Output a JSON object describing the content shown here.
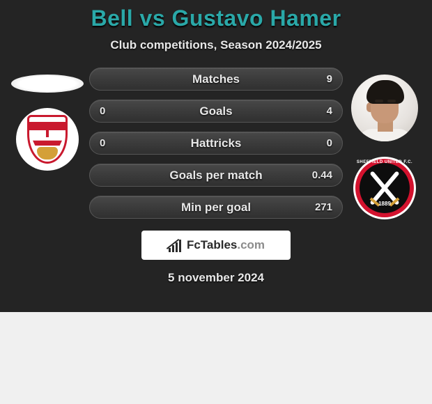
{
  "title": "Bell vs Gustavo Hamer",
  "subtitle": "Club competitions, Season 2024/2025",
  "date": "5 november 2024",
  "brand_name": "FcTables",
  "brand_ext": ".com",
  "colors": {
    "background": "#242424",
    "title_color": "#2aa8a8",
    "row_bg_top": "#484848",
    "row_bg_bot": "#303030",
    "text": "#e8e8e8",
    "bristol_red": "#c9192e",
    "sheffield_red": "#d3122e",
    "sheffield_black": "#0d0d0d"
  },
  "player_left": {
    "name": "Bell",
    "club": "Bristol City"
  },
  "player_right": {
    "name": "Gustavo Hamer",
    "club": "Sheffield United",
    "club_year": "1889"
  },
  "rows": [
    {
      "label": "Matches",
      "left": "",
      "right": "9"
    },
    {
      "label": "Goals",
      "left": "0",
      "right": "4"
    },
    {
      "label": "Hattricks",
      "left": "0",
      "right": "0"
    },
    {
      "label": "Goals per match",
      "left": "",
      "right": "0.44"
    },
    {
      "label": "Min per goal",
      "left": "",
      "right": "271"
    }
  ]
}
